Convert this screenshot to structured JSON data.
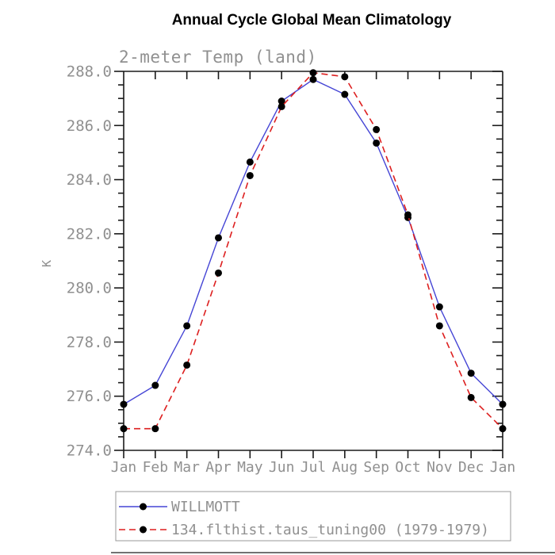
{
  "title": "Annual Cycle Global Mean Climatology",
  "subtitle": "2-meter Temp (land)",
  "ylabel": "K",
  "chart_data": {
    "type": "line",
    "categories": [
      "Jan",
      "Feb",
      "Mar",
      "Apr",
      "May",
      "Jun",
      "Jul",
      "Aug",
      "Sep",
      "Oct",
      "Nov",
      "Dec",
      "Jan"
    ],
    "series": [
      {
        "name": "WILLMOTT",
        "style": "solid",
        "color": "#4545d5",
        "marker": "black-circle",
        "values": [
          275.7,
          276.4,
          278.6,
          281.85,
          284.65,
          286.9,
          287.7,
          287.15,
          285.35,
          282.6,
          279.3,
          276.85,
          275.7
        ]
      },
      {
        "name": "134.flthist.taus_tuning00 (1979-1979)",
        "style": "dashed",
        "color": "#dd1f1f",
        "marker": "black-circle",
        "values": [
          274.8,
          274.8,
          277.15,
          280.55,
          284.15,
          286.7,
          287.95,
          287.8,
          285.85,
          282.7,
          278.6,
          275.95,
          274.8
        ]
      }
    ],
    "ylim": [
      274.0,
      288.0
    ],
    "ytick_step": 2.0,
    "yminor_step": 0.5,
    "ytick_labels": [
      "274.0",
      "276.0",
      "278.0",
      "280.0",
      "282.0",
      "284.0",
      "286.0",
      "288.0"
    ],
    "legend_position": "bottom",
    "grid": false
  },
  "colors": {
    "axis": "#1a1a1a",
    "tick_label": "#909090",
    "marker": "#000000",
    "legend_border": "#999999",
    "bottom_rule": "#444444"
  }
}
